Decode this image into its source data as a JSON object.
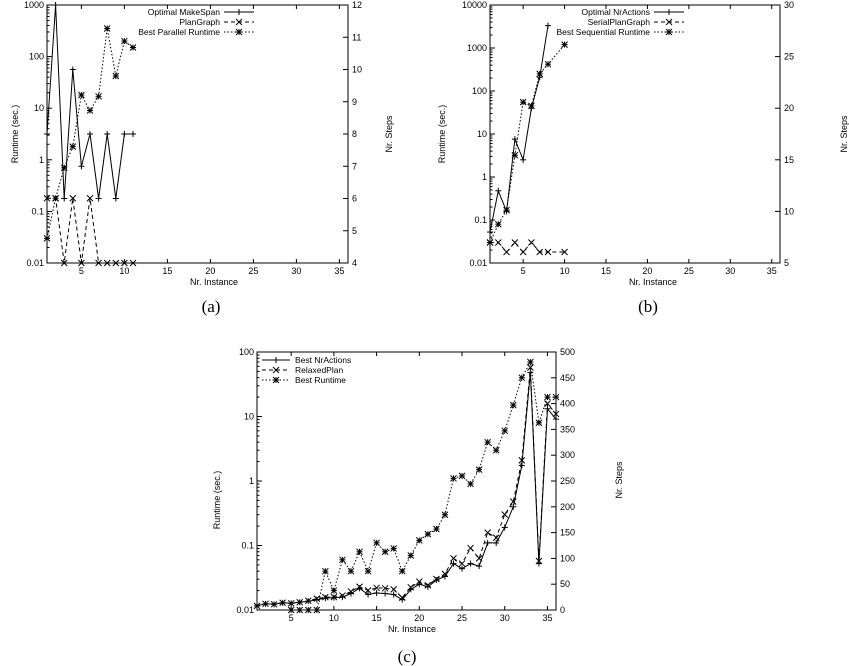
{
  "chart_data": [
    {
      "id": "a",
      "caption": "(a)",
      "type": "line",
      "xlabel": "Nr. Instance",
      "ylabel": "Runtime (sec.)",
      "y2label": "Nr. Steps",
      "xlim": [
        1,
        36
      ],
      "xticks": [
        5,
        10,
        15,
        20,
        25,
        30,
        35
      ],
      "ylim": [
        0.01,
        1000
      ],
      "yscale": "log",
      "yticks": [
        0.01,
        0.1,
        1,
        10,
        100,
        1000
      ],
      "yticklabels": [
        "0.01",
        "0.1",
        "1",
        "10",
        "100",
        "1000"
      ],
      "y2lim": [
        4,
        12
      ],
      "y2ticks": [
        4,
        5,
        6,
        7,
        8,
        9,
        10,
        11,
        12
      ],
      "legend_position": "top-right",
      "series": [
        {
          "name": "Optimal MakeSpan",
          "axis": "y2",
          "style": "solid",
          "marker": "plus",
          "x": [
            1,
            2,
            3,
            4,
            5,
            6,
            7,
            8,
            9,
            10,
            11
          ],
          "values": [
            8,
            12,
            6,
            10,
            7,
            8,
            6,
            8,
            6,
            8,
            8
          ]
        },
        {
          "name": "PlanGraph",
          "axis": "y",
          "style": "dashed",
          "marker": "cross",
          "x": [
            1,
            2,
            3,
            4,
            5,
            6,
            7,
            8,
            9,
            10,
            11
          ],
          "values": [
            0.18,
            0.18,
            0.01,
            0.18,
            0.01,
            0.18,
            0.01,
            0.01,
            0.01,
            0.01,
            0.01
          ]
        },
        {
          "name": "Best Parallel Runtime",
          "axis": "y",
          "style": "dotted",
          "marker": "star",
          "x": [
            1,
            2,
            3,
            4,
            5,
            6,
            7,
            8,
            9,
            10,
            11
          ],
          "values": [
            0.03,
            0.18,
            0.7,
            1.8,
            18,
            9,
            17,
            350,
            42,
            200,
            150
          ]
        }
      ]
    },
    {
      "id": "b",
      "caption": "(b)",
      "type": "line",
      "xlabel": "Nr. Instance",
      "ylabel": "Runtime (sec.)",
      "y2label": "Nr. Steps",
      "xlim": [
        1,
        36
      ],
      "xticks": [
        5,
        10,
        15,
        20,
        25,
        30,
        35
      ],
      "ylim": [
        0.01,
        10000
      ],
      "yscale": "log",
      "yticks": [
        0.01,
        0.1,
        1,
        10,
        100,
        1000,
        10000
      ],
      "yticklabels": [
        "0.01",
        "0.1",
        "1",
        "10",
        "100",
        "1000",
        "10000"
      ],
      "y2lim": [
        5,
        30
      ],
      "y2ticks": [
        5,
        10,
        15,
        20,
        25,
        30
      ],
      "legend_position": "top-right",
      "series": [
        {
          "name": "Optimal NrActions",
          "axis": "y2",
          "style": "solid",
          "marker": "plus",
          "x": [
            1,
            2,
            3,
            4,
            5,
            6,
            7,
            8
          ],
          "values": [
            8,
            12,
            10,
            17,
            15,
            20,
            23,
            28
          ]
        },
        {
          "name": "SerialPlanGraph",
          "axis": "y",
          "style": "dashed",
          "marker": "cross",
          "x": [
            1,
            2,
            3,
            4,
            5,
            6,
            7,
            8,
            10
          ],
          "values": [
            0.03,
            0.03,
            0.018,
            0.03,
            0.018,
            0.03,
            0.018,
            0.018,
            0.018
          ]
        },
        {
          "name": "Best Sequential Runtime",
          "axis": "y",
          "style": "dotted",
          "marker": "star",
          "x": [
            1,
            2,
            3,
            4,
            5,
            6,
            7,
            8,
            10
          ],
          "values": [
            0.03,
            0.08,
            0.17,
            3.2,
            55,
            45,
            250,
            420,
            1200
          ]
        }
      ]
    },
    {
      "id": "c",
      "caption": "(c)",
      "type": "line",
      "xlabel": "Nr. Instance",
      "ylabel": "Runtime (sec.)",
      "y2label": "Nr. Steps",
      "xlim": [
        1,
        36
      ],
      "xticks": [
        5,
        10,
        15,
        20,
        25,
        30,
        35
      ],
      "ylim": [
        0.01,
        100
      ],
      "yscale": "log",
      "yticks": [
        0.01,
        0.1,
        1,
        10,
        100
      ],
      "yticklabels": [
        "0.01",
        "0.1",
        "1",
        "10",
        "100"
      ],
      "y2lim": [
        0,
        500
      ],
      "y2ticks": [
        0,
        50,
        100,
        150,
        200,
        250,
        300,
        350,
        400,
        450,
        500
      ],
      "legend_position": "top-left",
      "series": [
        {
          "name": "Best NrActions",
          "axis": "y2",
          "style": "solid",
          "marker": "plus",
          "x": [
            1,
            2,
            3,
            4,
            5,
            6,
            7,
            8,
            9,
            10,
            11,
            12,
            13,
            14,
            15,
            16,
            17,
            18,
            19,
            20,
            21,
            22,
            23,
            24,
            25,
            26,
            27,
            28,
            29,
            30,
            31,
            32,
            33,
            34,
            35,
            36
          ],
          "values": [
            8,
            12,
            11,
            14,
            13,
            15,
            17,
            20,
            23,
            24,
            25,
            32,
            42,
            30,
            33,
            32,
            30,
            20,
            40,
            50,
            45,
            58,
            65,
            90,
            80,
            90,
            85,
            130,
            130,
            160,
            200,
            280,
            460,
            90,
            390,
            370
          ]
        },
        {
          "name": "RelaxedPlan",
          "axis": "y2",
          "style": "dashed",
          "marker": "cross",
          "x": [
            1,
            2,
            3,
            4,
            5,
            6,
            7,
            8,
            9,
            10,
            11,
            12,
            13,
            14,
            15,
            16,
            17,
            18,
            19,
            20,
            21,
            22,
            23,
            24,
            25,
            26,
            27,
            28,
            29,
            30,
            31,
            32,
            33,
            34,
            35,
            36
          ],
          "values": [
            8,
            12,
            11,
            14,
            13,
            15,
            18,
            22,
            25,
            25,
            28,
            36,
            45,
            38,
            43,
            42,
            40,
            24,
            44,
            55,
            48,
            60,
            70,
            100,
            90,
            120,
            100,
            150,
            140,
            185,
            210,
            290,
            470,
            95,
            400,
            380
          ]
        },
        {
          "name": "Best Runtime",
          "axis": "y",
          "style": "dotted",
          "marker": "star",
          "x": [
            5,
            6,
            7,
            8,
            9,
            10,
            11,
            12,
            13,
            14,
            15,
            16,
            17,
            18,
            19,
            20,
            21,
            22,
            23,
            24,
            25,
            26,
            27,
            28,
            29,
            30,
            31,
            32,
            33,
            34,
            35,
            36
          ],
          "values": [
            0.01,
            0.01,
            0.01,
            0.01,
            0.04,
            0.02,
            0.06,
            0.04,
            0.08,
            0.04,
            0.11,
            0.08,
            0.09,
            0.04,
            0.07,
            0.12,
            0.15,
            0.18,
            0.3,
            1.1,
            1.2,
            0.9,
            1.5,
            4,
            3,
            6,
            15,
            40,
            70,
            8,
            20,
            20
          ]
        }
      ]
    }
  ]
}
